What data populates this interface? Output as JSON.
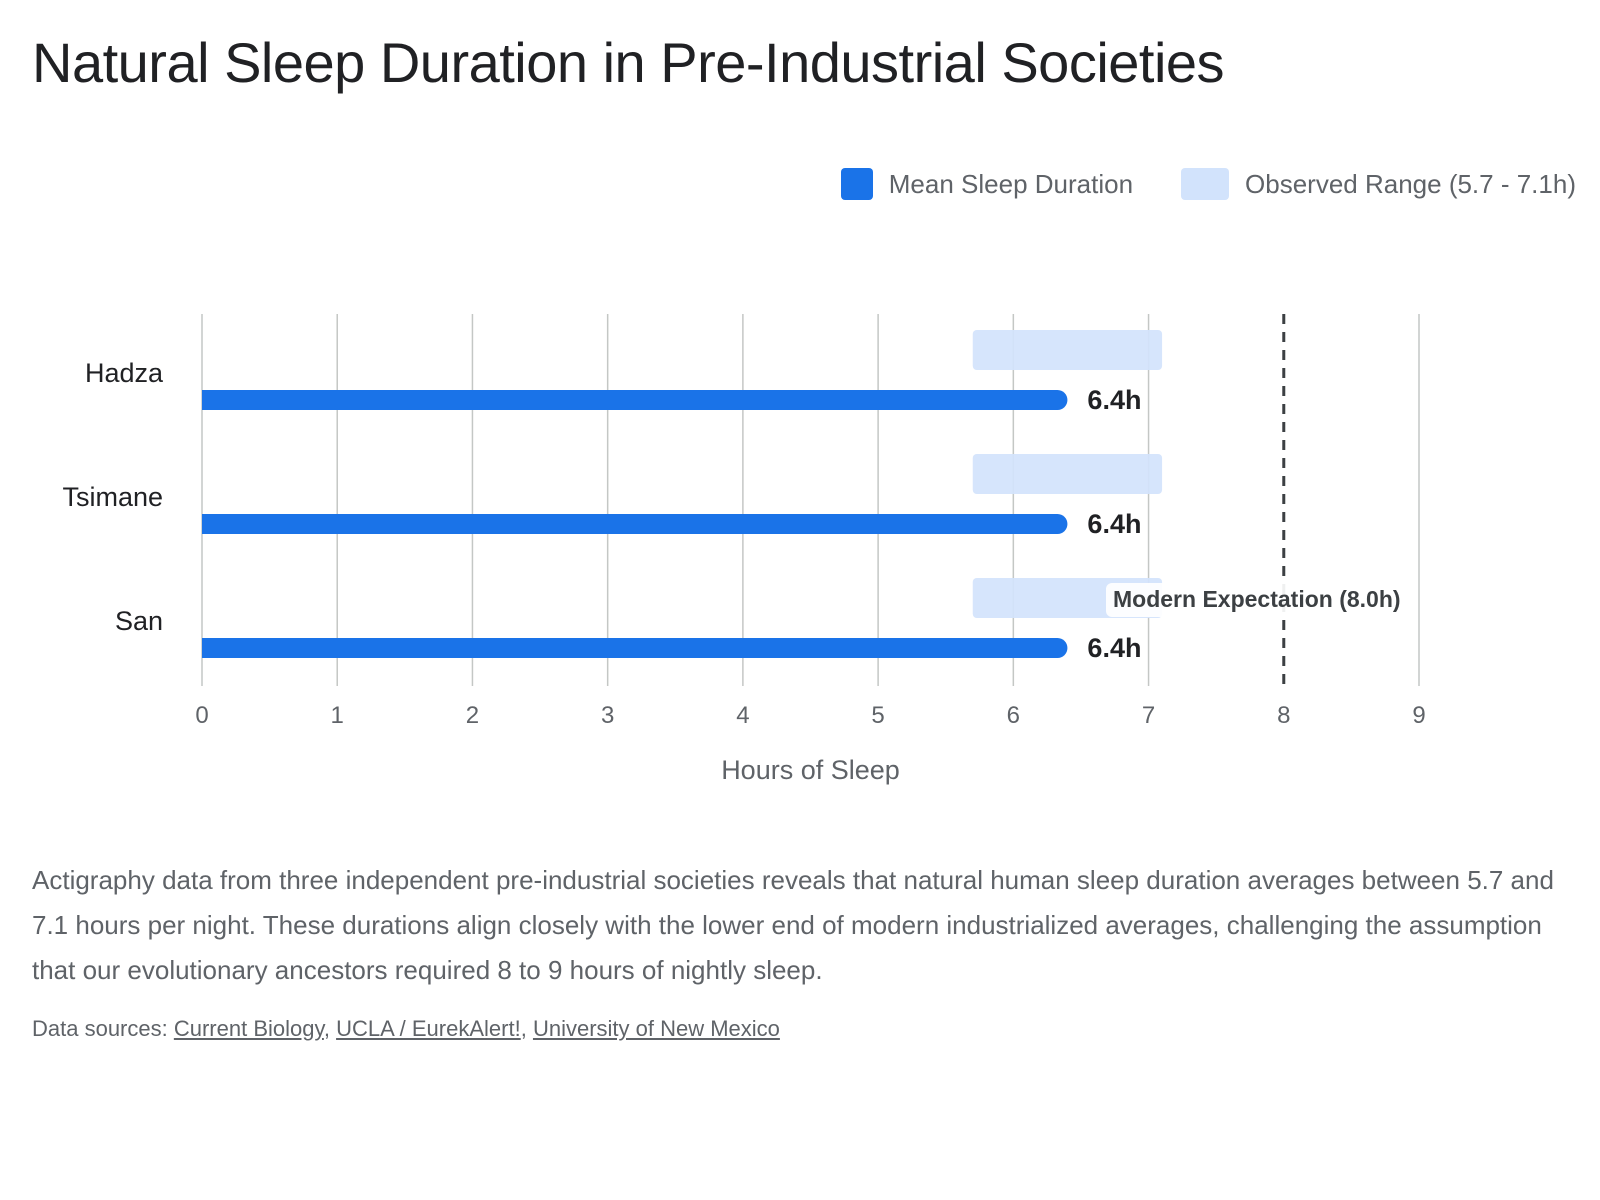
{
  "title": "Natural Sleep Duration in Pre-Industrial Societies",
  "legend": {
    "mean_label": "Mean Sleep Duration",
    "range_label": "Observed Range (5.7 - 7.1h)"
  },
  "description": "Actigraphy data from three independent pre-industrial societies reveals that natural human sleep duration averages between 5.7 and 7.1 hours per night. These durations align closely with the lower end of modern industrialized averages, challenging the assumption that our evolutionary ancestors required 8 to 9 hours of nightly sleep.",
  "sources": {
    "prefix": "Data sources: ",
    "links": [
      "Current Biology",
      "UCLA / EurekAlert!",
      "University of New Mexico"
    ],
    "separator": ", "
  },
  "colors": {
    "mean_bar": "#1a73e8",
    "range_band": "#d2e3fc",
    "grid": "#c4c7c5",
    "reference_line": "#3c4043"
  },
  "chart_data": {
    "type": "bar",
    "orientation": "horizontal",
    "categories": [
      "Hadza",
      "Tsimane",
      "San"
    ],
    "series": [
      {
        "name": "Mean Sleep Duration",
        "values": [
          6.4,
          6.4,
          6.4
        ],
        "value_labels": [
          "6.4h",
          "6.4h",
          "6.4h"
        ]
      },
      {
        "name": "Observed Range (5.7 - 7.1h)",
        "ranges": [
          [
            5.7,
            7.1
          ],
          [
            5.7,
            7.1
          ],
          [
            5.7,
            7.1
          ]
        ]
      }
    ],
    "reference_line": {
      "value": 8.0,
      "label": "Modern Expectation (8.0h)",
      "style": "dashed"
    },
    "xlabel": "Hours of Sleep",
    "xlim": [
      0,
      9
    ],
    "xticks": [
      "0",
      "1",
      "2",
      "3",
      "4",
      "5",
      "6",
      "7",
      "8",
      "9"
    ],
    "grid": true,
    "legend_position": "top-right"
  }
}
